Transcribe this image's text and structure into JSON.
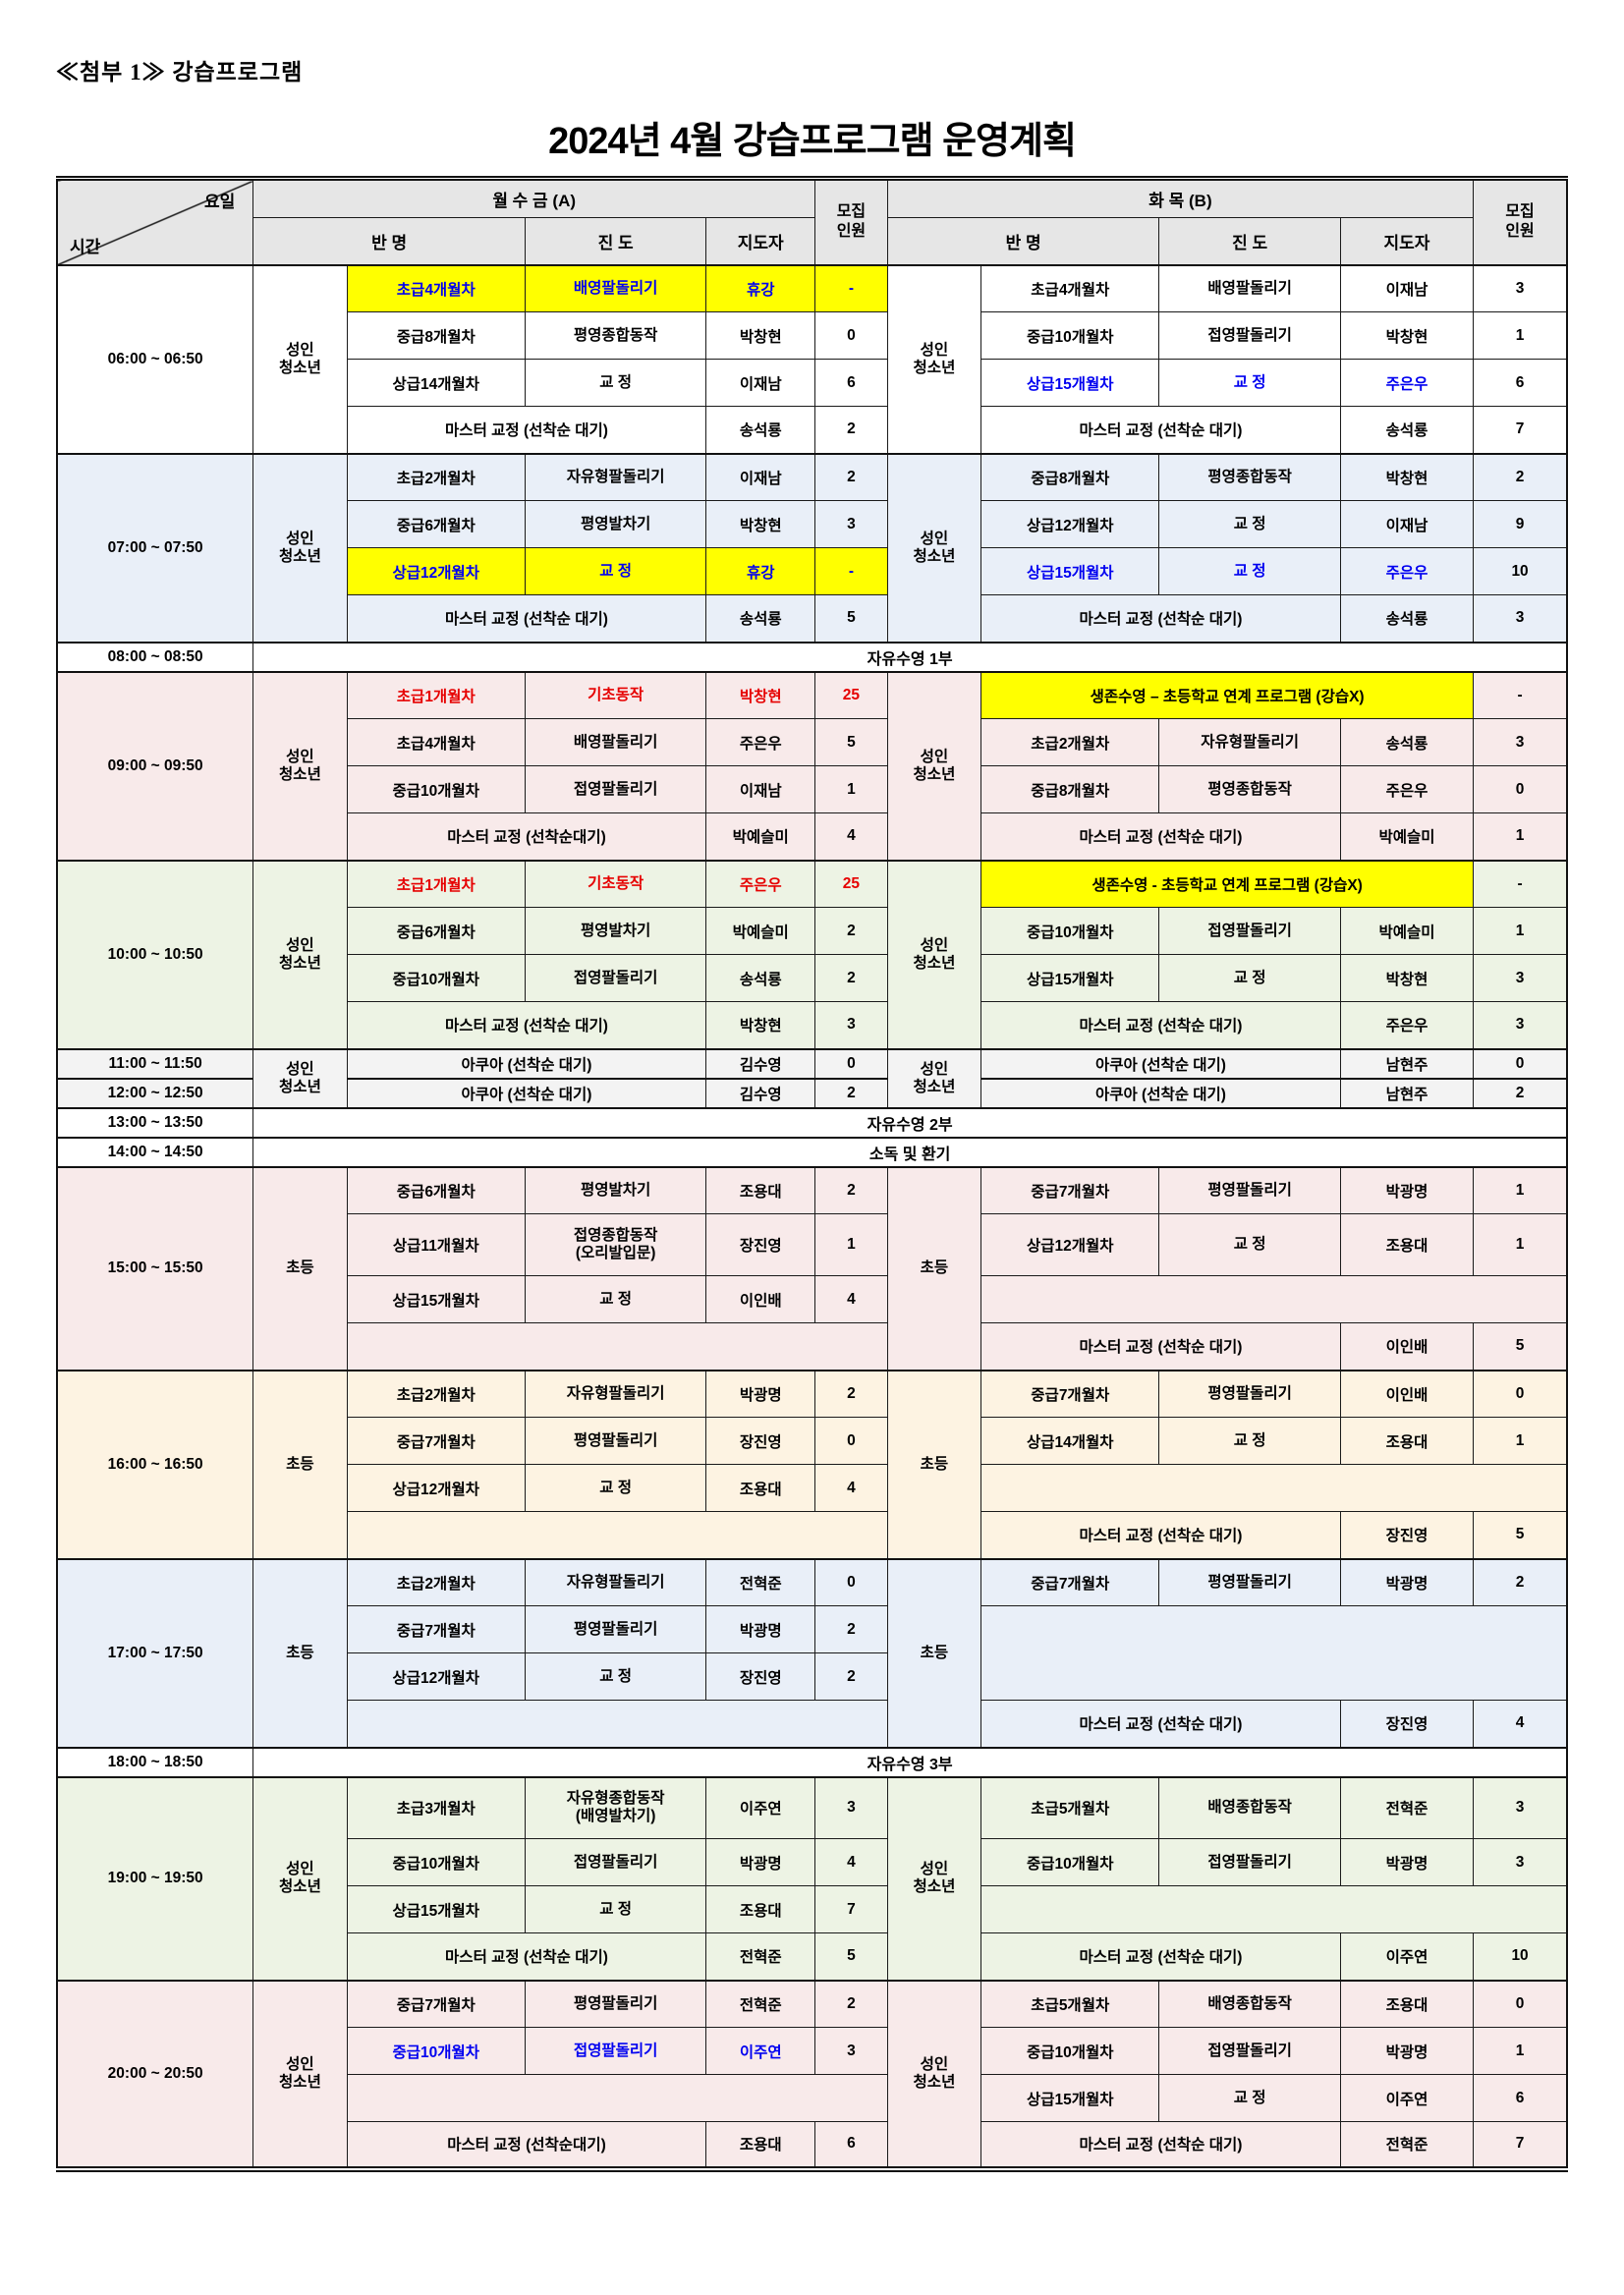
{
  "doc": {
    "attachment_label": "≪첨부 1≫ 강습프로그램",
    "title": "2024년 4월 강습프로그램 운영계획"
  },
  "header": {
    "corner_day": "요일",
    "corner_time": "시간",
    "a_title": "월 수 금 (A)",
    "b_title": "화  목 (B)",
    "col_class": "반  명",
    "col_progress": "진  도",
    "col_instructor": "지도자",
    "capacity": "모집\n인원"
  },
  "schedule": [
    {
      "type": "block",
      "time": "06:00  ~  06:50",
      "tint": "white",
      "group": "성인\n청소년",
      "a_rows": [
        {
          "kind": "lesson",
          "class": "초급4개월차",
          "progress": "배영팔돌리기",
          "instructor": "휴강",
          "count": "-",
          "style": "closed"
        },
        {
          "kind": "lesson",
          "class": "중급8개월차",
          "progress": "평영종합동작",
          "instructor": "박창현",
          "count": "0"
        },
        {
          "kind": "lesson",
          "class": "상급14개월차",
          "progress": "교 정",
          "instructor": "이재남",
          "count": "6"
        },
        {
          "kind": "master",
          "label": "마스터 교정 (선착순 대기)",
          "instructor": "송석룡",
          "count": "2"
        }
      ],
      "b_rows": [
        {
          "kind": "lesson",
          "class": "초급4개월차",
          "progress": "배영팔돌리기",
          "instructor": "이재남",
          "count": "3"
        },
        {
          "kind": "lesson",
          "class": "중급10개월차",
          "progress": "접영팔돌리기",
          "instructor": "박창현",
          "count": "1"
        },
        {
          "kind": "lesson",
          "class": "상급15개월차",
          "progress": "교 정",
          "instructor": "주은우",
          "count": "6",
          "style": "blue"
        },
        {
          "kind": "master",
          "label": "마스터 교정 (선착순 대기)",
          "instructor": "송석룡",
          "count": "7"
        }
      ]
    },
    {
      "type": "block",
      "time": "07:00  ~  07:50",
      "tint": "blue",
      "group": "성인\n청소년",
      "a_rows": [
        {
          "kind": "lesson",
          "class": "초급2개월차",
          "progress": "자유형팔돌리기",
          "instructor": "이재남",
          "count": "2"
        },
        {
          "kind": "lesson",
          "class": "중급6개월차",
          "progress": "평영발차기",
          "instructor": "박창현",
          "count": "3"
        },
        {
          "kind": "lesson",
          "class": "상급12개월차",
          "progress": "교 정",
          "instructor": "휴강",
          "count": "-",
          "style": "closed"
        },
        {
          "kind": "master",
          "label": "마스터 교정 (선착순 대기)",
          "instructor": "송석룡",
          "count": "5"
        }
      ],
      "b_rows": [
        {
          "kind": "lesson",
          "class": "중급8개월차",
          "progress": "평영종합동작",
          "instructor": "박창현",
          "count": "2"
        },
        {
          "kind": "lesson",
          "class": "상급12개월차",
          "progress": "교 정",
          "instructor": "이재남",
          "count": "9"
        },
        {
          "kind": "lesson",
          "class": "상급15개월차",
          "progress": "교 정",
          "instructor": "주은우",
          "count": "10",
          "style": "blue"
        },
        {
          "kind": "master",
          "label": "마스터 교정 (선착순 대기)",
          "instructor": "송석룡",
          "count": "3"
        }
      ]
    },
    {
      "type": "full",
      "time": "08:00  ~  08:50",
      "label": "자유수영 1부"
    },
    {
      "type": "block",
      "time": "09:00  ~  09:50",
      "tint": "pink",
      "group": "성인\n청소년",
      "a_rows": [
        {
          "kind": "lesson",
          "class": "초급1개월차",
          "progress": "기초동작",
          "instructor": "박창현",
          "count": "25",
          "style": "red"
        },
        {
          "kind": "lesson",
          "class": "초급4개월차",
          "progress": "배영팔돌리기",
          "instructor": "주은우",
          "count": "5"
        },
        {
          "kind": "lesson",
          "class": "중급10개월차",
          "progress": "접영팔돌리기",
          "instructor": "이재남",
          "count": "1"
        },
        {
          "kind": "master",
          "label": "마스터 교정 (선착순대기)",
          "instructor": "박예슬미",
          "count": "4"
        }
      ],
      "b_rows": [
        {
          "kind": "program",
          "label": "생존수영 – 초등학교 연계 프로그램 (강습X)",
          "count": "-"
        },
        {
          "kind": "lesson",
          "class": "초급2개월차",
          "progress": "자유형팔돌리기",
          "instructor": "송석룡",
          "count": "3"
        },
        {
          "kind": "lesson",
          "class": "중급8개월차",
          "progress": "평영종합동작",
          "instructor": "주은우",
          "count": "0"
        },
        {
          "kind": "master",
          "label": "마스터 교정 (선착순 대기)",
          "instructor": "박예슬미",
          "count": "1"
        }
      ]
    },
    {
      "type": "block",
      "time": "10:00  ~  10:50",
      "tint": "green",
      "group": "성인\n청소년",
      "a_rows": [
        {
          "kind": "lesson",
          "class": "초급1개월차",
          "progress": "기초동작",
          "instructor": "주은우",
          "count": "25",
          "style": "red"
        },
        {
          "kind": "lesson",
          "class": "중급6개월차",
          "progress": "평영발차기",
          "instructor": "박예슬미",
          "count": "2"
        },
        {
          "kind": "lesson",
          "class": "중급10개월차",
          "progress": "접영팔돌리기",
          "instructor": "송석룡",
          "count": "2"
        },
        {
          "kind": "master",
          "label": "마스터 교정 (선착순 대기)",
          "instructor": "박창현",
          "count": "3"
        }
      ],
      "b_rows": [
        {
          "kind": "program",
          "label": "생존수영 - 초등학교 연계 프로그램 (강습X)",
          "count": "-"
        },
        {
          "kind": "lesson",
          "class": "중급10개월차",
          "progress": "접영팔돌리기",
          "instructor": "박예슬미",
          "count": "1"
        },
        {
          "kind": "lesson",
          "class": "상급15개월차",
          "progress": "교 정",
          "instructor": "박창현",
          "count": "3"
        },
        {
          "kind": "master",
          "label": "마스터 교정 (선착순 대기)",
          "instructor": "주은우",
          "count": "3"
        }
      ]
    },
    {
      "type": "aqua2",
      "times": [
        "11:00  ~  11:50",
        "12:00  ~  12:50"
      ],
      "tint": "gray",
      "group": "성인\n청소년",
      "a_rows": [
        {
          "kind": "aqua",
          "label": "아쿠아 (선착순 대기)",
          "instructor": "김수영",
          "count": "0"
        },
        {
          "kind": "aqua",
          "label": "아쿠아 (선착순 대기)",
          "instructor": "김수영",
          "count": "2"
        }
      ],
      "b_rows": [
        {
          "kind": "aqua",
          "label": "아쿠아 (선착순 대기)",
          "instructor": "남현주",
          "count": "0"
        },
        {
          "kind": "aqua",
          "label": "아쿠아 (선착순 대기)",
          "instructor": "남현주",
          "count": "2"
        }
      ]
    },
    {
      "type": "full",
      "time": "13:00  ~  13:50",
      "label": "자유수영 2부"
    },
    {
      "type": "full",
      "time": "14:00  ~  14:50",
      "label": "소독 및 환기"
    },
    {
      "type": "block",
      "time": "15:00  ~  15:50",
      "tint": "pink",
      "group": "초등",
      "a_rows": [
        {
          "kind": "lesson",
          "class": "중급6개월차",
          "progress": "평영발차기",
          "instructor": "조용대",
          "count": "2"
        },
        {
          "kind": "lesson",
          "class": "상급11개월차",
          "progress": "접영종합동작\n(오리발입문)",
          "instructor": "장진영",
          "count": "1",
          "tall": true
        },
        {
          "kind": "lesson",
          "class": "상급15개월차",
          "progress": "교 정",
          "instructor": "이인배",
          "count": "4"
        },
        {
          "kind": "blank"
        }
      ],
      "b_rows": [
        {
          "kind": "lesson",
          "class": "중급7개월차",
          "progress": "평영팔돌리기",
          "instructor": "박광명",
          "count": "1"
        },
        {
          "kind": "lesson",
          "class": "상급12개월차",
          "progress": "교 정",
          "instructor": "조용대",
          "count": "1"
        },
        {
          "kind": "blank"
        },
        {
          "kind": "master",
          "label": "마스터 교정 (선착순 대기)",
          "instructor": "이인배",
          "count": "5"
        }
      ]
    },
    {
      "type": "block",
      "time": "16:00  ~  16:50",
      "tint": "cream",
      "group": "초등",
      "a_rows": [
        {
          "kind": "lesson",
          "class": "초급2개월차",
          "progress": "자유형팔돌리기",
          "instructor": "박광명",
          "count": "2"
        },
        {
          "kind": "lesson",
          "class": "중급7개월차",
          "progress": "평영팔돌리기",
          "instructor": "장진영",
          "count": "0"
        },
        {
          "kind": "lesson",
          "class": "상급12개월차",
          "progress": "교 정",
          "instructor": "조용대",
          "count": "4"
        },
        {
          "kind": "blank"
        }
      ],
      "b_rows": [
        {
          "kind": "lesson",
          "class": "중급7개월차",
          "progress": "평영팔돌리기",
          "instructor": "이인배",
          "count": "0"
        },
        {
          "kind": "lesson",
          "class": "상급14개월차",
          "progress": "교 정",
          "instructor": "조용대",
          "count": "1"
        },
        {
          "kind": "blank"
        },
        {
          "kind": "master",
          "label": "마스터 교정 (선착순 대기)",
          "instructor": "장진영",
          "count": "5"
        }
      ]
    },
    {
      "type": "block",
      "time": "17:00  ~  17:50",
      "tint": "blue",
      "group": "초등",
      "a_rows": [
        {
          "kind": "lesson",
          "class": "초급2개월차",
          "progress": "자유형팔돌리기",
          "instructor": "전혁준",
          "count": "0"
        },
        {
          "kind": "lesson",
          "class": "중급7개월차",
          "progress": "평영팔돌리기",
          "instructor": "박광명",
          "count": "2"
        },
        {
          "kind": "lesson",
          "class": "상급12개월차",
          "progress": "교 정",
          "instructor": "장진영",
          "count": "2"
        },
        {
          "kind": "blank"
        }
      ],
      "b_rows": [
        {
          "kind": "lesson",
          "class": "중급7개월차",
          "progress": "평영팔돌리기",
          "instructor": "박광명",
          "count": "2"
        },
        {
          "kind": "blank",
          "span": 2
        },
        {
          "kind": "skip"
        },
        {
          "kind": "master",
          "label": "마스터 교정 (선착순 대기)",
          "instructor": "장진영",
          "count": "4"
        }
      ]
    },
    {
      "type": "full",
      "time": "18:00  ~  18:50",
      "label": "자유수영 3부"
    },
    {
      "type": "block",
      "time": "19:00  ~  19:50",
      "tint": "green",
      "group": "성인\n청소년",
      "a_rows": [
        {
          "kind": "lesson",
          "class": "초급3개월차",
          "progress": "자유형종합동작\n(배영발차기)",
          "instructor": "이주연",
          "count": "3",
          "tall": true
        },
        {
          "kind": "lesson",
          "class": "중급10개월차",
          "progress": "접영팔돌리기",
          "instructor": "박광명",
          "count": "4"
        },
        {
          "kind": "lesson",
          "class": "상급15개월차",
          "progress": "교 정",
          "instructor": "조용대",
          "count": "7"
        },
        {
          "kind": "master",
          "label": "마스터 교정 (선착순 대기)",
          "instructor": "전혁준",
          "count": "5"
        }
      ],
      "b_rows": [
        {
          "kind": "lesson",
          "class": "초급5개월차",
          "progress": "배영종합동작",
          "instructor": "전혁준",
          "count": "3"
        },
        {
          "kind": "lesson",
          "class": "중급10개월차",
          "progress": "접영팔돌리기",
          "instructor": "박광명",
          "count": "3"
        },
        {
          "kind": "blank"
        },
        {
          "kind": "master",
          "label": "마스터 교정 (선착순 대기)",
          "instructor": "이주연",
          "count": "10"
        }
      ]
    },
    {
      "type": "block",
      "time": "20:00  ~  20:50",
      "tint": "pink",
      "group": "성인\n청소년",
      "a_rows": [
        {
          "kind": "lesson",
          "class": "중급7개월차",
          "progress": "평영팔돌리기",
          "instructor": "전혁준",
          "count": "2"
        },
        {
          "kind": "lesson",
          "class": "중급10개월차",
          "progress": "접영팔돌리기",
          "instructor": "이주연",
          "count": "3",
          "style": "blue"
        },
        {
          "kind": "blank"
        },
        {
          "kind": "master",
          "label": "마스터 교정 (선착순대기)",
          "instructor": "조용대",
          "count": "6"
        }
      ],
      "b_rows": [
        {
          "kind": "lesson",
          "class": "초급5개월차",
          "progress": "배영종합동작",
          "instructor": "조용대",
          "count": "0"
        },
        {
          "kind": "lesson",
          "class": "중급10개월차",
          "progress": "접영팔돌리기",
          "instructor": "박광명",
          "count": "1"
        },
        {
          "kind": "lesson",
          "class": "상급15개월차",
          "progress": "교 정",
          "instructor": "이주연",
          "count": "6"
        },
        {
          "kind": "master",
          "label": "마스터 교정 (선착순 대기)",
          "instructor": "전혁준",
          "count": "7"
        }
      ]
    }
  ],
  "colors": {
    "closed_highlight": "#ffff00",
    "closed_text": "#0000f0",
    "red_text": "#e60000",
    "tint_blue": "#e9eff8",
    "tint_pink": "#f8eaea",
    "tint_green": "#edf3e4",
    "tint_cream": "#fdf3e2",
    "tint_gray": "#f3f3f3",
    "header_gray": "#e6e6e6"
  }
}
